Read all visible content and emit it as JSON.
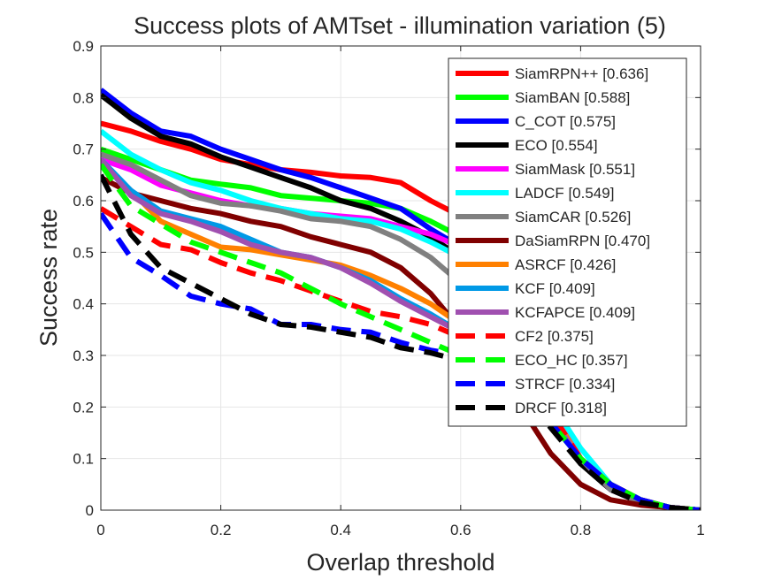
{
  "chart_data": {
    "type": "line",
    "title": "Success plots of AMTset - illumination variation (5)",
    "xlabel": "Overlap threshold",
    "ylabel": "Success rate",
    "xlim": [
      0,
      1
    ],
    "ylim": [
      0,
      0.9
    ],
    "xticks": [
      "0",
      "0.2",
      "0.4",
      "0.6",
      "0.8",
      "1"
    ],
    "yticks": [
      "0",
      "0.1",
      "0.2",
      "0.3",
      "0.4",
      "0.5",
      "0.6",
      "0.7",
      "0.8",
      "0.9"
    ],
    "grid": true,
    "legend_position": "top-right",
    "x": [
      0,
      0.05,
      0.1,
      0.15,
      0.2,
      0.25,
      0.3,
      0.35,
      0.4,
      0.45,
      0.5,
      0.55,
      0.6,
      0.65,
      0.7,
      0.75,
      0.8,
      0.85,
      0.9,
      0.95,
      1.0
    ],
    "series": [
      {
        "name": "SiamRPN++ [0.636]",
        "color": "#ff0000",
        "dash": false,
        "values": [
          0.75,
          0.735,
          0.715,
          0.7,
          0.68,
          0.67,
          0.66,
          0.655,
          0.648,
          0.645,
          0.635,
          0.6,
          0.57,
          0.48,
          0.33,
          0.2,
          0.1,
          0.04,
          0.015,
          0.005,
          0.0
        ]
      },
      {
        "name": "SiamBAN [0.588]",
        "color": "#00ff00",
        "dash": false,
        "values": [
          0.7,
          0.68,
          0.66,
          0.64,
          0.632,
          0.625,
          0.61,
          0.605,
          0.6,
          0.595,
          0.585,
          0.56,
          0.53,
          0.46,
          0.32,
          0.19,
          0.1,
          0.04,
          0.015,
          0.005,
          0.0
        ]
      },
      {
        "name": "C_COT [0.575]",
        "color": "#0000ff",
        "dash": false,
        "values": [
          0.815,
          0.77,
          0.735,
          0.725,
          0.7,
          0.68,
          0.66,
          0.645,
          0.625,
          0.605,
          0.585,
          0.545,
          0.51,
          0.45,
          0.33,
          0.2,
          0.1,
          0.04,
          0.015,
          0.005,
          0.0
        ]
      },
      {
        "name": "ECO [0.554]",
        "color": "#000000",
        "dash": false,
        "values": [
          0.805,
          0.76,
          0.725,
          0.71,
          0.685,
          0.665,
          0.645,
          0.625,
          0.6,
          0.585,
          0.56,
          0.53,
          0.49,
          0.43,
          0.32,
          0.19,
          0.09,
          0.04,
          0.015,
          0.005,
          0.0
        ]
      },
      {
        "name": "SiamMask [0.551]",
        "color": "#ff00ff",
        "dash": false,
        "values": [
          0.68,
          0.66,
          0.63,
          0.615,
          0.6,
          0.59,
          0.585,
          0.575,
          0.57,
          0.565,
          0.55,
          0.535,
          0.51,
          0.45,
          0.33,
          0.2,
          0.1,
          0.04,
          0.015,
          0.005,
          0.0
        ]
      },
      {
        "name": "LADCF [0.549]",
        "color": "#00ffff",
        "dash": false,
        "values": [
          0.735,
          0.69,
          0.66,
          0.635,
          0.62,
          0.6,
          0.585,
          0.575,
          0.565,
          0.56,
          0.545,
          0.52,
          0.49,
          0.44,
          0.33,
          0.21,
          0.12,
          0.05,
          0.02,
          0.005,
          0.0
        ]
      },
      {
        "name": "SiamCAR [0.526]",
        "color": "#808080",
        "dash": false,
        "values": [
          0.69,
          0.67,
          0.64,
          0.61,
          0.595,
          0.59,
          0.58,
          0.565,
          0.56,
          0.55,
          0.525,
          0.49,
          0.44,
          0.38,
          0.3,
          0.19,
          0.1,
          0.04,
          0.015,
          0.005,
          0.0
        ]
      },
      {
        "name": "DaSiamRPN [0.470]",
        "color": "#800000",
        "dash": false,
        "values": [
          0.645,
          0.615,
          0.6,
          0.585,
          0.575,
          0.56,
          0.55,
          0.53,
          0.515,
          0.5,
          0.47,
          0.42,
          0.35,
          0.28,
          0.2,
          0.11,
          0.05,
          0.02,
          0.01,
          0.005,
          0.0
        ]
      },
      {
        "name": "ASRCF [0.426]",
        "color": "#ff8000",
        "dash": false,
        "values": [
          0.675,
          0.62,
          0.56,
          0.535,
          0.51,
          0.505,
          0.495,
          0.485,
          0.475,
          0.455,
          0.43,
          0.4,
          0.36,
          0.32,
          0.27,
          0.19,
          0.1,
          0.05,
          0.02,
          0.005,
          0.0
        ]
      },
      {
        "name": "KCF [0.409]",
        "color": "#0099e6",
        "dash": false,
        "values": [
          0.68,
          0.62,
          0.58,
          0.565,
          0.55,
          0.525,
          0.5,
          0.49,
          0.47,
          0.445,
          0.41,
          0.38,
          0.345,
          0.3,
          0.25,
          0.18,
          0.1,
          0.05,
          0.02,
          0.005,
          0.0
        ]
      },
      {
        "name": "KCFAPCE [0.409]",
        "color": "#a050b0",
        "dash": false,
        "values": [
          0.68,
          0.61,
          0.575,
          0.56,
          0.54,
          0.515,
          0.5,
          0.49,
          0.47,
          0.44,
          0.405,
          0.375,
          0.345,
          0.3,
          0.25,
          0.18,
          0.1,
          0.05,
          0.02,
          0.005,
          0.0
        ]
      },
      {
        "name": "CF2 [0.375]",
        "color": "#ff0000",
        "dash": true,
        "values": [
          0.585,
          0.55,
          0.515,
          0.505,
          0.48,
          0.46,
          0.445,
          0.425,
          0.405,
          0.385,
          0.375,
          0.36,
          0.335,
          0.3,
          0.26,
          0.19,
          0.1,
          0.05,
          0.02,
          0.005,
          0.0
        ]
      },
      {
        "name": "ECO_HC [0.357]",
        "color": "#00ff00",
        "dash": true,
        "values": [
          0.67,
          0.59,
          0.555,
          0.52,
          0.5,
          0.48,
          0.46,
          0.43,
          0.4,
          0.375,
          0.35,
          0.325,
          0.3,
          0.28,
          0.24,
          0.17,
          0.1,
          0.05,
          0.02,
          0.005,
          0.0
        ]
      },
      {
        "name": "STRCF [0.334]",
        "color": "#0000ff",
        "dash": true,
        "values": [
          0.575,
          0.49,
          0.455,
          0.415,
          0.4,
          0.39,
          0.36,
          0.36,
          0.35,
          0.345,
          0.325,
          0.31,
          0.3,
          0.28,
          0.24,
          0.17,
          0.1,
          0.05,
          0.02,
          0.005,
          0.0
        ]
      },
      {
        "name": "DRCF [0.318]",
        "color": "#000000",
        "dash": true,
        "values": [
          0.65,
          0.535,
          0.47,
          0.44,
          0.41,
          0.38,
          0.36,
          0.355,
          0.345,
          0.335,
          0.315,
          0.305,
          0.29,
          0.27,
          0.23,
          0.16,
          0.09,
          0.04,
          0.015,
          0.005,
          0.0
        ]
      }
    ]
  }
}
